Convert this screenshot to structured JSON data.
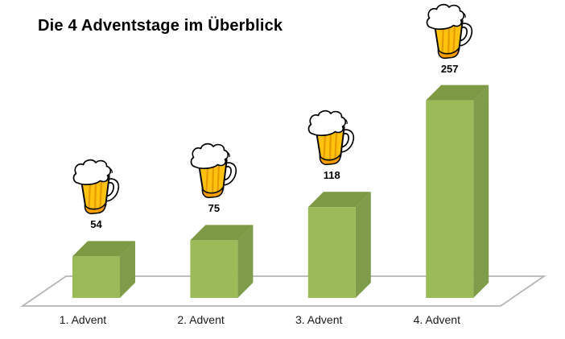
{
  "title": "Die 4 Adventstage im Überblick",
  "chart_data": {
    "type": "bar",
    "style": "3d-column",
    "title": "Die 4 Adventstage im Überblick",
    "categories": [
      "1. Advent",
      "2. Advent",
      "3. Advent",
      "4. Advent"
    ],
    "values": [
      54,
      75,
      118,
      257
    ],
    "xlabel": "",
    "ylabel": "",
    "ylim": [
      0,
      260
    ],
    "grid": false,
    "legend": false,
    "point_icon": "beer-mug-icon",
    "colors": {
      "bar_front": "#9BBA58",
      "bar_top": "#7D9944",
      "bar_side": "#7F9C4B",
      "floor_line": "#B5B5B5",
      "title_text": "#000000",
      "value_text": "#000000",
      "category_text": "#1A1A1A",
      "beer_gold": "#FFC20E",
      "beer_rib": "#E79A00",
      "beer_surface": "#F7A600",
      "beer_base": "#F59E00",
      "foam": "#FFFFFF",
      "outline": "#0B0B0B"
    }
  }
}
